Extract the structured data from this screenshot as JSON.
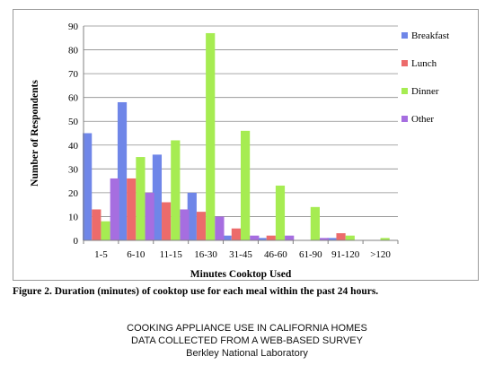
{
  "chart_data": {
    "type": "bar",
    "categories": [
      "1-5",
      "6-10",
      "11-15",
      "16-30",
      "31-45",
      "46-60",
      "61-90",
      "91-120",
      ">120"
    ],
    "series": [
      {
        "name": "Breakfast",
        "color": "#6f86e8",
        "values": [
          45,
          58,
          36,
          20,
          2,
          1,
          0,
          1,
          0
        ]
      },
      {
        "name": "Lunch",
        "color": "#ec6b6b",
        "values": [
          13,
          26,
          16,
          12,
          5,
          2,
          0,
          3,
          0
        ]
      },
      {
        "name": "Dinner",
        "color": "#a6ec52",
        "values": [
          8,
          35,
          42,
          87,
          46,
          23,
          14,
          2,
          1
        ]
      },
      {
        "name": "Other",
        "color": "#a66ee0",
        "values": [
          26,
          20,
          13,
          10,
          2,
          2,
          1,
          0,
          0
        ]
      }
    ],
    "xlabel": "Minutes Cooktop Used",
    "ylabel": "Number of Respondents",
    "ylim": [
      0,
      90
    ],
    "yticks": [
      0,
      10,
      20,
      30,
      40,
      50,
      60,
      70,
      80,
      90
    ],
    "grid": true,
    "legend": "right"
  },
  "caption": "Figure 2. Duration (minutes) of cooktop use for each meal within the past 24 hours.",
  "footer": {
    "line1": "COOKING APPLIANCE USE IN CALIFORNIA HOMES",
    "line2": "DATA COLLECTED FROM A WEB-BASED SURVEY",
    "line3": "Berkley National Laboratory"
  }
}
